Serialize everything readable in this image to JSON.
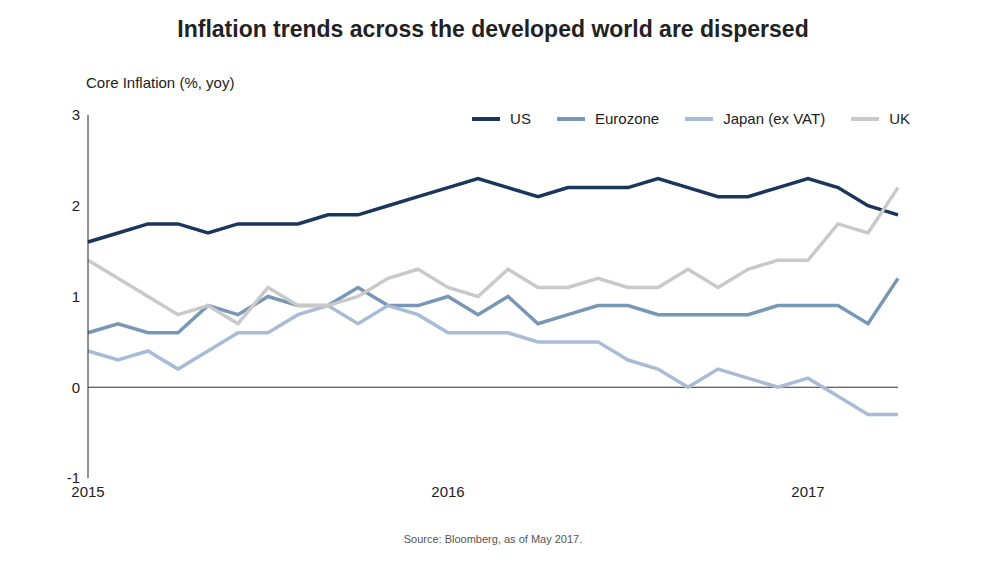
{
  "chart_data": {
    "type": "line",
    "title": "Inflation trends across the developed world are dispersed",
    "ylabel": "Core Inflation (%, yoy)",
    "source": "Source: Bloomberg, as of May 2017.",
    "categories": [
      "2015",
      null,
      null,
      null,
      null,
      null,
      null,
      null,
      null,
      null,
      null,
      null,
      "2016",
      null,
      null,
      null,
      null,
      null,
      null,
      null,
      null,
      null,
      null,
      null,
      "2017",
      null,
      null,
      null
    ],
    "series": [
      {
        "name": "US",
        "color": "#1b365d",
        "values": [
          1.6,
          1.7,
          1.8,
          1.8,
          1.7,
          1.8,
          1.8,
          1.8,
          1.9,
          1.9,
          2.0,
          2.1,
          2.2,
          2.3,
          2.2,
          2.1,
          2.2,
          2.2,
          2.2,
          2.3,
          2.2,
          2.1,
          2.1,
          2.2,
          2.3,
          2.2,
          2.0,
          1.9
        ]
      },
      {
        "name": "Eurozone",
        "color": "#7896b6",
        "values": [
          0.6,
          0.7,
          0.6,
          0.6,
          0.9,
          0.8,
          1.0,
          0.9,
          0.9,
          1.1,
          0.9,
          0.9,
          1.0,
          0.8,
          1.0,
          0.7,
          0.8,
          0.9,
          0.9,
          0.8,
          0.8,
          0.8,
          0.8,
          0.9,
          0.9,
          0.9,
          0.7,
          1.2
        ]
      },
      {
        "name": "Japan (ex VAT)",
        "color": "#a8bcd6",
        "values": [
          0.4,
          0.3,
          0.4,
          0.2,
          0.4,
          0.6,
          0.6,
          0.8,
          0.9,
          0.7,
          0.9,
          0.8,
          0.6,
          0.6,
          0.6,
          0.5,
          0.5,
          0.5,
          0.3,
          0.2,
          0.0,
          0.2,
          0.1,
          0.0,
          0.1,
          -0.1,
          -0.3,
          -0.3
        ]
      },
      {
        "name": "UK",
        "color": "#c9c9c9",
        "values": [
          1.4,
          1.2,
          1.0,
          0.8,
          0.9,
          0.7,
          1.1,
          0.9,
          0.9,
          1.0,
          1.2,
          1.3,
          1.1,
          1.0,
          1.3,
          1.1,
          1.1,
          1.2,
          1.1,
          1.1,
          1.3,
          1.1,
          1.3,
          1.4,
          1.4,
          1.8,
          1.7,
          2.2
        ]
      }
    ],
    "ylim": [
      -1,
      3
    ],
    "yticks": [
      -1,
      0,
      1,
      2,
      3
    ],
    "grid": false,
    "legend": "upper right"
  }
}
